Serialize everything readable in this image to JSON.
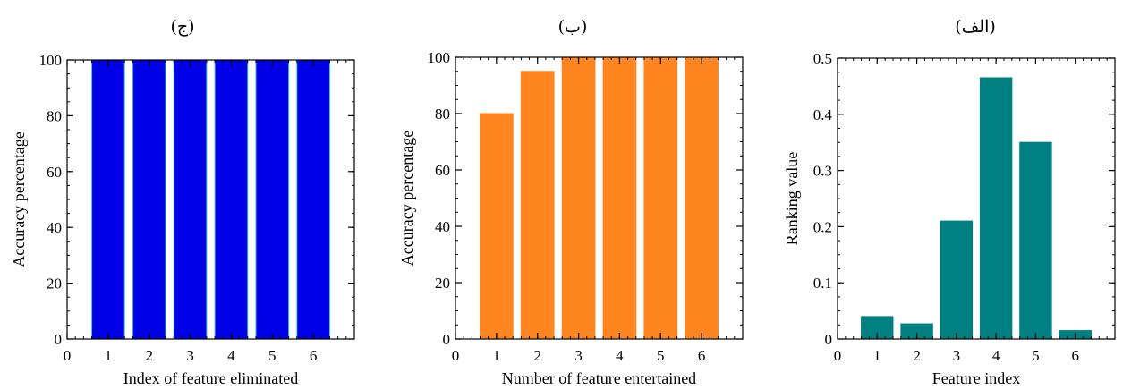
{
  "chart_data": [
    {
      "type": "bar",
      "title": "(ج)",
      "xlabel": "Index of feature eliminated",
      "ylabel": "Accuracy percentage",
      "categories": [
        1,
        2,
        3,
        4,
        5,
        6
      ],
      "values": [
        100,
        100,
        100,
        100,
        100,
        100
      ],
      "xlim": [
        0,
        7
      ],
      "ylim": [
        0,
        100
      ],
      "xticks": [
        0,
        1,
        2,
        3,
        4,
        5,
        6
      ],
      "yticks": [
        0,
        20,
        40,
        60,
        80,
        100
      ],
      "grid": false,
      "color": "#0000e6",
      "edge_color": "#3cc8c8"
    },
    {
      "type": "bar",
      "title": "(ب)",
      "xlabel": "Number of feature entertained",
      "ylabel": "Accuracy percentage",
      "categories": [
        1,
        2,
        3,
        4,
        5,
        6
      ],
      "values": [
        80,
        95,
        100,
        100,
        100,
        100
      ],
      "xlim": [
        0,
        7
      ],
      "ylim": [
        0,
        100
      ],
      "xticks": [
        0,
        1,
        2,
        3,
        4,
        5,
        6
      ],
      "yticks": [
        0,
        20,
        40,
        60,
        80,
        100
      ],
      "grid": false,
      "color": "#ff8520",
      "edge_color": "#ff8520"
    },
    {
      "type": "bar",
      "title": "(الف)",
      "xlabel": "Feature index",
      "ylabel": "Ranking value",
      "categories": [
        1,
        2,
        3,
        4,
        5,
        6
      ],
      "values": [
        0.04,
        0.027,
        0.21,
        0.465,
        0.35,
        0.015
      ],
      "xlim": [
        0,
        7
      ],
      "ylim": [
        0,
        0.5
      ],
      "xticks": [
        0,
        1,
        2,
        3,
        4,
        5,
        6
      ],
      "yticks": [
        0,
        0.1,
        0.2,
        0.3,
        0.4,
        0.5
      ],
      "grid": false,
      "color": "#008080",
      "edge_color": "#008080"
    }
  ]
}
